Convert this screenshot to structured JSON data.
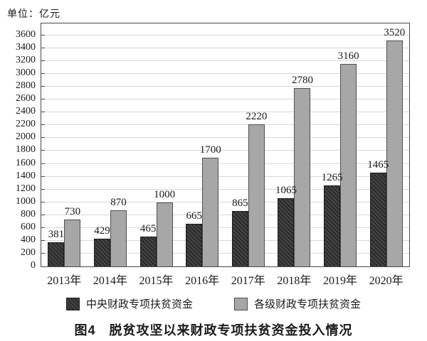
{
  "unit_label": "单位：亿元",
  "caption": "图4　脱贫攻坚以来财政专项扶贫资金投入情况",
  "colors": {
    "dark_bar": "#333333",
    "light_bar": "#a7a7a7",
    "gridline": "#d8d8d8",
    "axis": "#4a4a4a",
    "text": "#1a1a1a"
  },
  "chart_data": {
    "type": "bar",
    "title": "图4　脱贫攻坚以来财政专项扶贫资金投入情况",
    "unit_label": "单位：亿元",
    "categories": [
      "2013年",
      "2014年",
      "2015年",
      "2016年",
      "2017年",
      "2018年",
      "2019年",
      "2020年"
    ],
    "series": [
      {
        "name": "中央财政专项扶贫资金",
        "style": "dark-hatched",
        "values": [
          381,
          429,
          465,
          665,
          865,
          1065,
          1265,
          1465
        ]
      },
      {
        "name": "各级财政专项扶贫资金",
        "style": "light-gray",
        "values": [
          730,
          870,
          1000,
          1700,
          2220,
          2780,
          3160,
          3520
        ]
      }
    ],
    "xlabel": "",
    "ylabel": "",
    "ylim": [
      0,
      3600
    ],
    "ytick_step": 200,
    "yticks": [
      0,
      200,
      400,
      600,
      800,
      1000,
      1200,
      1400,
      1600,
      1800,
      2000,
      2200,
      2400,
      2600,
      2800,
      3000,
      3200,
      3400,
      3600
    ],
    "grid": true,
    "legend_position": "bottom",
    "value_labels": true
  }
}
